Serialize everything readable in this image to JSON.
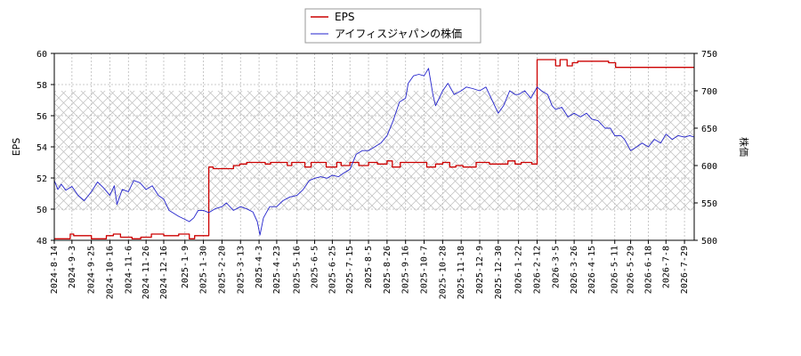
{
  "chart_data": {
    "type": "line",
    "title": "",
    "legend": {
      "placement": "top-center",
      "entries": [
        {
          "label": "EPS",
          "color": "#cc0000"
        },
        {
          "label": "アイフィスジャパンの株価",
          "color": "#2222cc"
        }
      ]
    },
    "ylabel_left": "EPS",
    "ylabel_right": "株価",
    "ylim_left": [
      48,
      60
    ],
    "ylim_right": [
      500,
      750
    ],
    "yticks_left": [
      "48",
      "50",
      "52",
      "54",
      "56",
      "58",
      "60"
    ],
    "yticks_right": [
      "500",
      "550",
      "600",
      "650",
      "700",
      "750"
    ],
    "x_range": [
      "2024-08-14",
      "2026-08-09"
    ],
    "xticks": [
      "2024-8-14",
      "2024-9-3",
      "2024-9-25",
      "2024-10-16",
      "2024-11-6",
      "2024-11-26",
      "2024-12-16",
      "2025-1-9",
      "2025-1-30",
      "2025-2-20",
      "2025-3-13",
      "2025-4-3",
      "2025-4-23",
      "2025-5-16",
      "2025-6-5",
      "2025-6-25",
      "2025-7-15",
      "2025-8-5",
      "2025-8-26",
      "2025-9-16",
      "2025-10-7",
      "2025-10-28",
      "2025-11-18",
      "2025-12-9",
      "2025-12-30",
      "2026-1-22",
      "2026-2-12",
      "2026-3-5",
      "2026-3-26",
      "2026-4-15",
      "2026-5-11",
      "2026-5-29",
      "2026-6-18",
      "2026-7-8",
      "2026-7-29"
    ],
    "grid": true,
    "shaded_band_right": [
      540,
      700
    ],
    "series": [
      {
        "name": "EPS",
        "axis": "left",
        "color": "#cc0000",
        "points": [
          [
            "2024-08-14",
            48.1
          ],
          [
            "2024-09-01",
            48.1
          ],
          [
            "2024-09-01",
            48.4
          ],
          [
            "2024-09-05",
            48.4
          ],
          [
            "2024-09-05",
            48.3
          ],
          [
            "2024-09-25",
            48.3
          ],
          [
            "2024-09-25",
            48.1
          ],
          [
            "2024-10-12",
            48.1
          ],
          [
            "2024-10-12",
            48.3
          ],
          [
            "2024-10-20",
            48.3
          ],
          [
            "2024-10-20",
            48.4
          ],
          [
            "2024-10-28",
            48.4
          ],
          [
            "2024-10-28",
            48.2
          ],
          [
            "2024-11-10",
            48.2
          ],
          [
            "2024-11-10",
            48.1
          ],
          [
            "2024-11-20",
            48.1
          ],
          [
            "2024-11-20",
            48.2
          ],
          [
            "2024-12-02",
            48.2
          ],
          [
            "2024-12-02",
            48.4
          ],
          [
            "2024-12-16",
            48.4
          ],
          [
            "2024-12-16",
            48.3
          ],
          [
            "2025-01-02",
            48.3
          ],
          [
            "2025-01-02",
            48.4
          ],
          [
            "2025-01-14",
            48.4
          ],
          [
            "2025-01-14",
            48.1
          ],
          [
            "2025-01-20",
            48.1
          ],
          [
            "2025-01-20",
            48.3
          ],
          [
            "2025-02-05",
            48.3
          ],
          [
            "2025-02-05",
            52.7
          ],
          [
            "2025-02-10",
            52.7
          ],
          [
            "2025-02-10",
            52.6
          ],
          [
            "2025-03-05",
            52.6
          ],
          [
            "2025-03-05",
            52.8
          ],
          [
            "2025-03-12",
            52.8
          ],
          [
            "2025-03-12",
            52.9
          ],
          [
            "2025-03-20",
            52.9
          ],
          [
            "2025-03-20",
            53.0
          ],
          [
            "2025-04-10",
            53.0
          ],
          [
            "2025-04-10",
            52.9
          ],
          [
            "2025-04-16",
            52.9
          ],
          [
            "2025-04-16",
            53.0
          ],
          [
            "2025-05-05",
            53.0
          ],
          [
            "2025-05-05",
            52.8
          ],
          [
            "2025-05-10",
            52.8
          ],
          [
            "2025-05-10",
            53.0
          ],
          [
            "2025-05-25",
            53.0
          ],
          [
            "2025-05-25",
            52.7
          ],
          [
            "2025-06-01",
            52.7
          ],
          [
            "2025-06-01",
            53.0
          ],
          [
            "2025-06-18",
            53.0
          ],
          [
            "2025-06-18",
            52.7
          ],
          [
            "2025-06-30",
            52.7
          ],
          [
            "2025-06-30",
            53.0
          ],
          [
            "2025-07-05",
            53.0
          ],
          [
            "2025-07-05",
            52.8
          ],
          [
            "2025-07-15",
            52.8
          ],
          [
            "2025-07-15",
            53.0
          ],
          [
            "2025-07-25",
            53.0
          ],
          [
            "2025-07-25",
            52.8
          ],
          [
            "2025-08-05",
            52.8
          ],
          [
            "2025-08-05",
            53.0
          ],
          [
            "2025-08-15",
            53.0
          ],
          [
            "2025-08-15",
            52.9
          ],
          [
            "2025-08-26",
            52.9
          ],
          [
            "2025-08-26",
            53.1
          ],
          [
            "2025-09-01",
            53.1
          ],
          [
            "2025-09-01",
            52.7
          ],
          [
            "2025-09-10",
            52.7
          ],
          [
            "2025-09-10",
            53.0
          ],
          [
            "2025-10-10",
            53.0
          ],
          [
            "2025-10-10",
            52.7
          ],
          [
            "2025-10-20",
            52.7
          ],
          [
            "2025-10-20",
            52.9
          ],
          [
            "2025-10-28",
            52.9
          ],
          [
            "2025-10-28",
            53.0
          ],
          [
            "2025-11-05",
            53.0
          ],
          [
            "2025-11-05",
            52.7
          ],
          [
            "2025-11-12",
            52.7
          ],
          [
            "2025-11-12",
            52.8
          ],
          [
            "2025-11-20",
            52.8
          ],
          [
            "2025-11-20",
            52.7
          ],
          [
            "2025-12-05",
            52.7
          ],
          [
            "2025-12-05",
            53.0
          ],
          [
            "2025-12-20",
            53.0
          ],
          [
            "2025-12-20",
            52.9
          ],
          [
            "2026-01-10",
            52.9
          ],
          [
            "2026-01-10",
            53.1
          ],
          [
            "2026-01-18",
            53.1
          ],
          [
            "2026-01-18",
            52.9
          ],
          [
            "2026-01-25",
            52.9
          ],
          [
            "2026-01-25",
            53.0
          ],
          [
            "2026-02-06",
            53.0
          ],
          [
            "2026-02-06",
            52.9
          ],
          [
            "2026-02-12",
            52.9
          ],
          [
            "2026-02-12",
            59.6
          ],
          [
            "2026-03-05",
            59.6
          ],
          [
            "2026-03-05",
            59.2
          ],
          [
            "2026-03-10",
            59.2
          ],
          [
            "2026-03-10",
            59.6
          ],
          [
            "2026-03-18",
            59.6
          ],
          [
            "2026-03-18",
            59.2
          ],
          [
            "2026-03-24",
            59.2
          ],
          [
            "2026-03-24",
            59.4
          ],
          [
            "2026-03-30",
            59.4
          ],
          [
            "2026-03-30",
            59.5
          ],
          [
            "2026-05-04",
            59.5
          ],
          [
            "2026-05-04",
            59.4
          ],
          [
            "2026-05-12",
            59.4
          ],
          [
            "2026-05-12",
            59.1
          ],
          [
            "2026-08-09",
            59.1
          ]
        ]
      },
      {
        "name": "アイフィスジャパンの株価",
        "axis": "right",
        "color": "#2222cc",
        "points": [
          [
            "2024-08-14",
            580
          ],
          [
            "2024-08-18",
            568
          ],
          [
            "2024-08-22",
            575
          ],
          [
            "2024-08-27",
            567
          ],
          [
            "2024-09-03",
            572
          ],
          [
            "2024-09-10",
            560
          ],
          [
            "2024-09-17",
            553
          ],
          [
            "2024-09-25",
            565
          ],
          [
            "2024-10-02",
            578
          ],
          [
            "2024-10-09",
            570
          ],
          [
            "2024-10-16",
            560
          ],
          [
            "2024-10-21",
            573
          ],
          [
            "2024-10-24",
            548
          ],
          [
            "2024-10-30",
            568
          ],
          [
            "2024-11-06",
            565
          ],
          [
            "2024-11-12",
            580
          ],
          [
            "2024-11-19",
            577
          ],
          [
            "2024-11-26",
            568
          ],
          [
            "2024-12-03",
            573
          ],
          [
            "2024-12-10",
            560
          ],
          [
            "2024-12-16",
            555
          ],
          [
            "2024-12-22",
            540
          ],
          [
            "2025-01-02",
            532
          ],
          [
            "2025-01-09",
            528
          ],
          [
            "2025-01-14",
            525
          ],
          [
            "2025-01-19",
            530
          ],
          [
            "2025-01-24",
            540
          ],
          [
            "2025-01-30",
            540
          ],
          [
            "2025-02-05",
            537
          ],
          [
            "2025-02-12",
            542
          ],
          [
            "2025-02-20",
            545
          ],
          [
            "2025-02-25",
            550
          ],
          [
            "2025-03-05",
            540
          ],
          [
            "2025-03-13",
            545
          ],
          [
            "2025-03-20",
            542
          ],
          [
            "2025-03-27",
            538
          ],
          [
            "2025-04-01",
            525
          ],
          [
            "2025-04-04",
            507
          ],
          [
            "2025-04-08",
            530
          ],
          [
            "2025-04-15",
            545
          ],
          [
            "2025-04-23",
            545
          ],
          [
            "2025-04-30",
            553
          ],
          [
            "2025-05-08",
            558
          ],
          [
            "2025-05-16",
            560
          ],
          [
            "2025-05-23",
            568
          ],
          [
            "2025-05-30",
            580
          ],
          [
            "2025-06-05",
            583
          ],
          [
            "2025-06-12",
            585
          ],
          [
            "2025-06-19",
            583
          ],
          [
            "2025-06-25",
            587
          ],
          [
            "2025-07-02",
            585
          ],
          [
            "2025-07-08",
            590
          ],
          [
            "2025-07-15",
            595
          ],
          [
            "2025-07-22",
            615
          ],
          [
            "2025-07-29",
            620
          ],
          [
            "2025-08-05",
            620
          ],
          [
            "2025-08-12",
            625
          ],
          [
            "2025-08-19",
            630
          ],
          [
            "2025-08-26",
            640
          ],
          [
            "2025-09-02",
            660
          ],
          [
            "2025-09-09",
            685
          ],
          [
            "2025-09-16",
            690
          ],
          [
            "2025-09-19",
            710
          ],
          [
            "2025-09-25",
            720
          ],
          [
            "2025-10-01",
            722
          ],
          [
            "2025-10-07",
            720
          ],
          [
            "2025-10-12",
            730
          ],
          [
            "2025-10-17",
            695
          ],
          [
            "2025-10-20",
            680
          ],
          [
            "2025-10-28",
            700
          ],
          [
            "2025-11-03",
            710
          ],
          [
            "2025-11-10",
            695
          ],
          [
            "2025-11-18",
            700
          ],
          [
            "2025-11-24",
            705
          ],
          [
            "2025-12-01",
            703
          ],
          [
            "2025-12-09",
            700
          ],
          [
            "2025-12-16",
            705
          ],
          [
            "2025-12-22",
            690
          ],
          [
            "2025-12-30",
            670
          ],
          [
            "2026-01-05",
            680
          ],
          [
            "2026-01-12",
            700
          ],
          [
            "2026-01-18",
            695
          ],
          [
            "2026-01-22",
            695
          ],
          [
            "2026-01-29",
            700
          ],
          [
            "2026-02-05",
            690
          ],
          [
            "2026-02-12",
            705
          ],
          [
            "2026-02-17",
            700
          ],
          [
            "2026-02-24",
            695
          ],
          [
            "2026-03-01",
            680
          ],
          [
            "2026-03-05",
            675
          ],
          [
            "2026-03-12",
            678
          ],
          [
            "2026-03-19",
            665
          ],
          [
            "2026-03-26",
            670
          ],
          [
            "2026-04-02",
            665
          ],
          [
            "2026-04-09",
            670
          ],
          [
            "2026-04-15",
            662
          ],
          [
            "2026-04-22",
            660
          ],
          [
            "2026-04-30",
            650
          ],
          [
            "2026-05-06",
            650
          ],
          [
            "2026-05-11",
            640
          ],
          [
            "2026-05-18",
            640
          ],
          [
            "2026-05-22",
            635
          ],
          [
            "2026-05-29",
            620
          ],
          [
            "2026-06-05",
            625
          ],
          [
            "2026-06-11",
            630
          ],
          [
            "2026-06-18",
            625
          ],
          [
            "2026-06-25",
            635
          ],
          [
            "2026-07-02",
            630
          ],
          [
            "2026-07-08",
            642
          ],
          [
            "2026-07-15",
            635
          ],
          [
            "2026-07-22",
            640
          ],
          [
            "2026-07-29",
            638
          ],
          [
            "2026-08-04",
            640
          ],
          [
            "2026-08-09",
            638
          ]
        ]
      }
    ]
  }
}
